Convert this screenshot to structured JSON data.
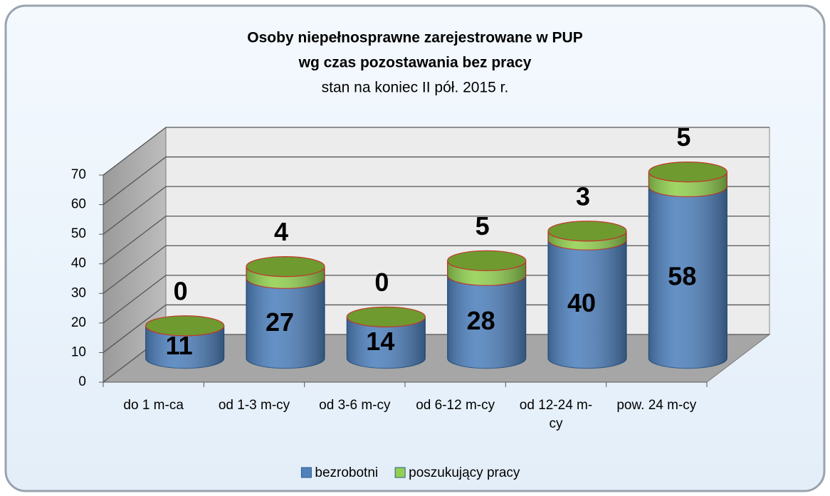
{
  "chart_data": {
    "type": "bar3d-cylinder-stacked",
    "title": [
      "Osoby niepełnosprawne zarejestrowane w PUP",
      "wg czas pozostawania bez pracy"
    ],
    "subtitle": "stan na koniec II pół. 2015 r.",
    "categories": [
      "do 1 m-ca",
      "od 1-3 m-cy",
      "od 3-6 m-cy",
      "od 6-12 m-cy",
      "od 12-24 m-cy",
      "pow. 24 m-cy"
    ],
    "series": [
      {
        "name": "bezrobotni",
        "color": "#4f81bd",
        "values": [
          11,
          27,
          14,
          28,
          40,
          58
        ]
      },
      {
        "name": "poszukujący pracy",
        "color": "#92d050",
        "values": [
          0,
          4,
          0,
          5,
          3,
          5
        ]
      }
    ],
    "ylim": [
      0,
      70
    ],
    "yticks": [
      0,
      10,
      20,
      30,
      40,
      50,
      60,
      70
    ],
    "grid": true,
    "legend": "bottom"
  }
}
